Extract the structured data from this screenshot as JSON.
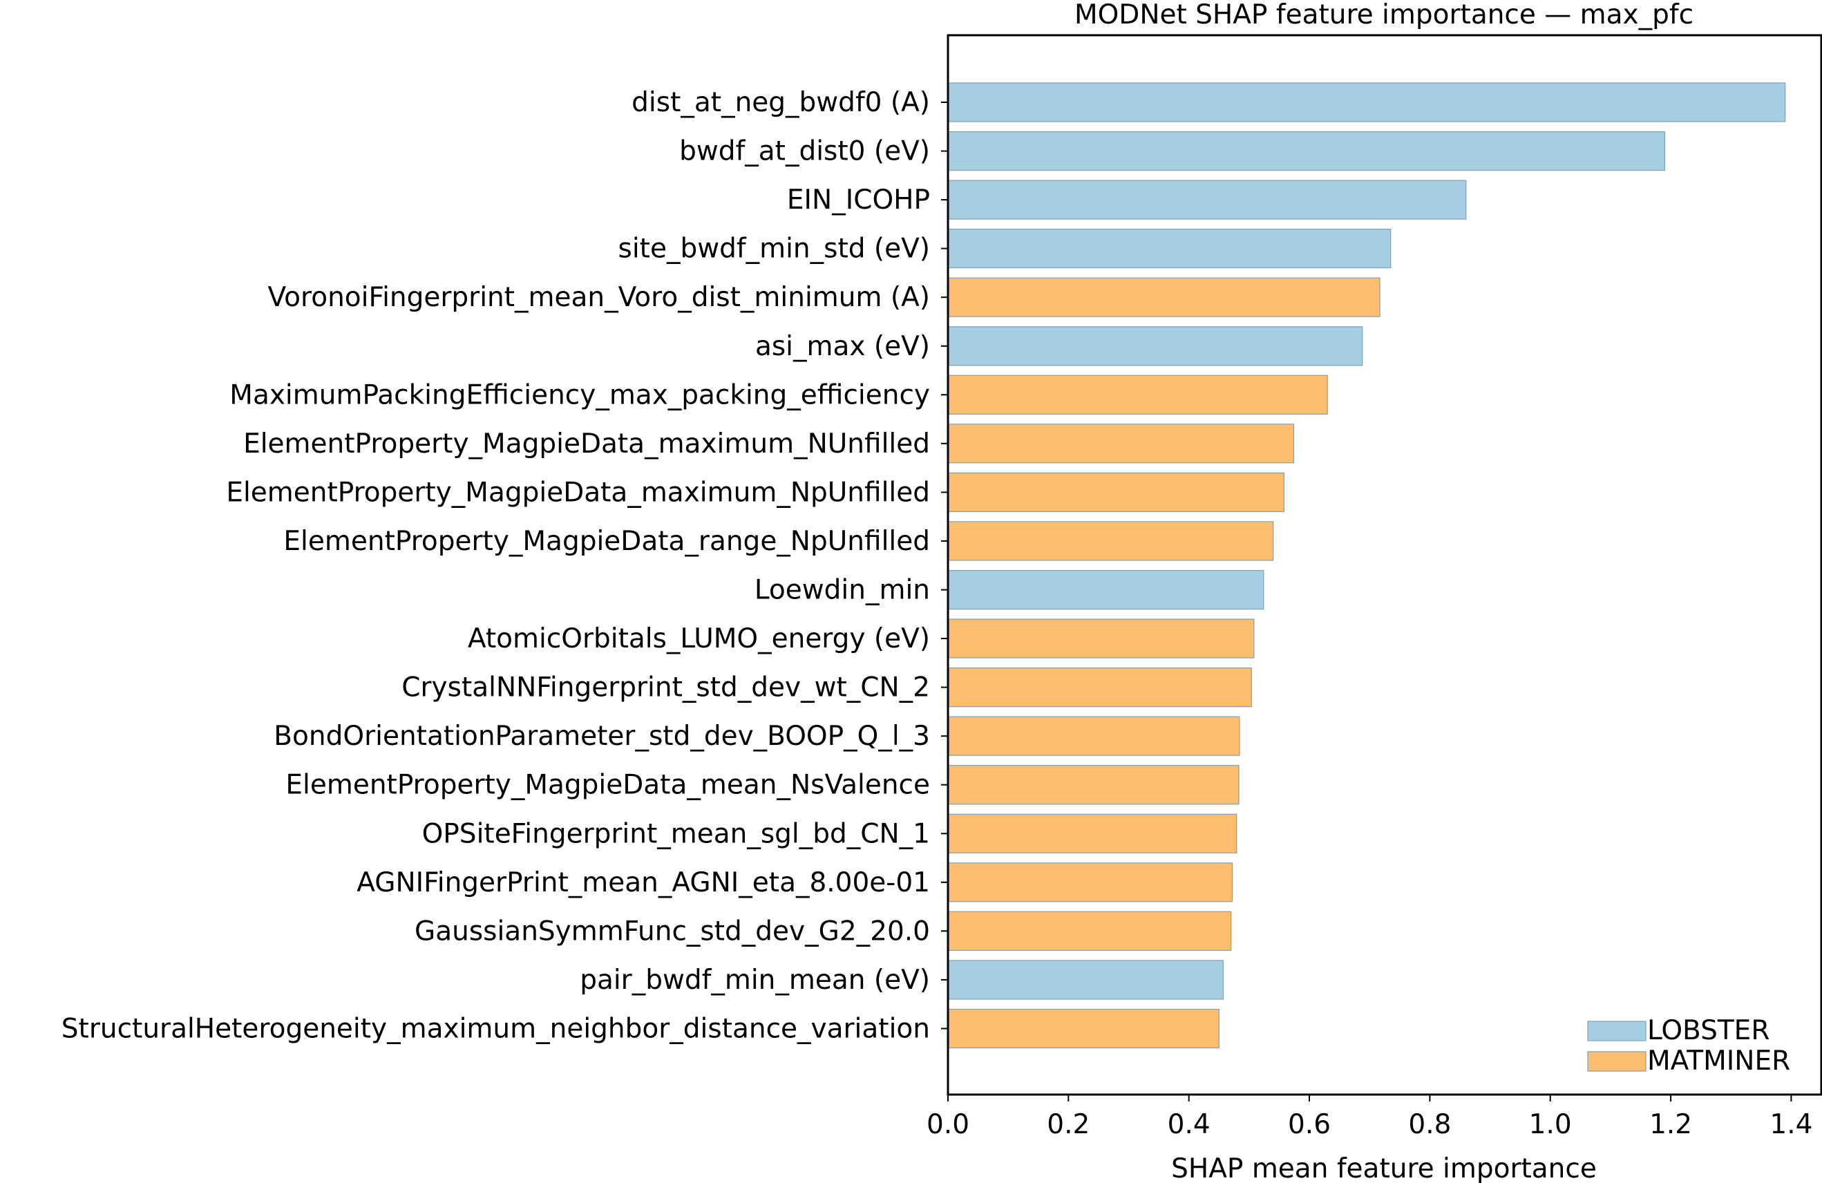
{
  "chart_data": {
    "type": "bar",
    "orientation": "horizontal",
    "title": "MODNet SHAP feature importance — max_pfc",
    "xlabel": "SHAP mean feature importance",
    "ylabel": "",
    "xlim": [
      0.0,
      1.45
    ],
    "xticks": [
      0.0,
      0.2,
      0.4,
      0.6,
      0.8,
      1.0,
      1.2,
      1.4
    ],
    "xtick_labels": [
      "0.0",
      "0.2",
      "0.4",
      "0.6",
      "0.8",
      "1.0",
      "1.2",
      "1.4"
    ],
    "grid": false,
    "legend_position": "lower-right",
    "series": [
      {
        "name": "LOBSTER",
        "color": "#a6cee3"
      },
      {
        "name": "MATMINER",
        "color": "#fdbf6f"
      }
    ],
    "bar_edge_color": "#7f9fb5",
    "bars": [
      {
        "label": "dist_at_neg_bwdf0 (A)",
        "value": 1.39,
        "group": "LOBSTER"
      },
      {
        "label": "bwdf_at_dist0 (eV)",
        "value": 1.19,
        "group": "LOBSTER"
      },
      {
        "label": "EIN_ICOHP",
        "value": 0.86,
        "group": "LOBSTER"
      },
      {
        "label": "site_bwdf_min_std (eV)",
        "value": 0.735,
        "group": "LOBSTER"
      },
      {
        "label": "VoronoiFingerprint_mean_Voro_dist_minimum (A)",
        "value": 0.717,
        "group": "MATMINER"
      },
      {
        "label": "asi_max (eV)",
        "value": 0.688,
        "group": "LOBSTER"
      },
      {
        "label": "MaximumPackingEfficiency_max_packing_efficiency",
        "value": 0.63,
        "group": "MATMINER"
      },
      {
        "label": "ElementProperty_MagpieData_maximum_NUnfilled",
        "value": 0.574,
        "group": "MATMINER"
      },
      {
        "label": "ElementProperty_MagpieData_maximum_NpUnfilled",
        "value": 0.558,
        "group": "MATMINER"
      },
      {
        "label": "ElementProperty_MagpieData_range_NpUnfilled",
        "value": 0.54,
        "group": "MATMINER"
      },
      {
        "label": "Loewdin_min",
        "value": 0.524,
        "group": "LOBSTER"
      },
      {
        "label": "AtomicOrbitals_LUMO_energy (eV)",
        "value": 0.508,
        "group": "MATMINER"
      },
      {
        "label": "CrystalNNFingerprint_std_dev_wt_CN_2",
        "value": 0.504,
        "group": "MATMINER"
      },
      {
        "label": "BondOrientationParameter_std_dev_BOOP_Q_l_3",
        "value": 0.484,
        "group": "MATMINER"
      },
      {
        "label": "ElementProperty_MagpieData_mean_NsValence",
        "value": 0.483,
        "group": "MATMINER"
      },
      {
        "label": "OPSiteFingerprint_mean_sgl_bd_CN_1",
        "value": 0.479,
        "group": "MATMINER"
      },
      {
        "label": "AGNIFingerPrint_mean_AGNI_eta_8.00e-01",
        "value": 0.472,
        "group": "MATMINER"
      },
      {
        "label": "GaussianSymmFunc_std_dev_G2_20.0",
        "value": 0.47,
        "group": "MATMINER"
      },
      {
        "label": "pair_bwdf_min_mean (eV)",
        "value": 0.457,
        "group": "LOBSTER"
      },
      {
        "label": "StructuralHeterogeneity_maximum_neighbor_distance_variation",
        "value": 0.45,
        "group": "MATMINER"
      }
    ]
  }
}
